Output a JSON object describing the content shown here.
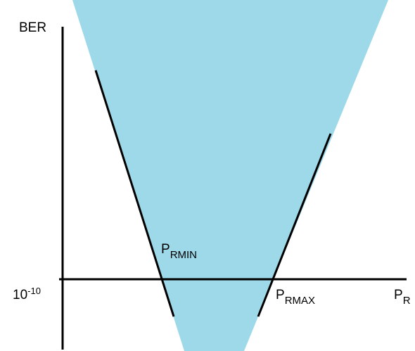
{
  "colors": {
    "window": "#9ed9ea",
    "line": "#000000",
    "background": "#ffffff"
  },
  "labels": {
    "y_axis": "BER",
    "x_axis_main": "P",
    "x_axis_sub": "R",
    "threshold_base": "10",
    "threshold_exp": "-10",
    "pmin_main": "P",
    "pmin_sub": "RMIN",
    "pmax_main": "P",
    "pmax_sub": "RMAX"
  }
}
